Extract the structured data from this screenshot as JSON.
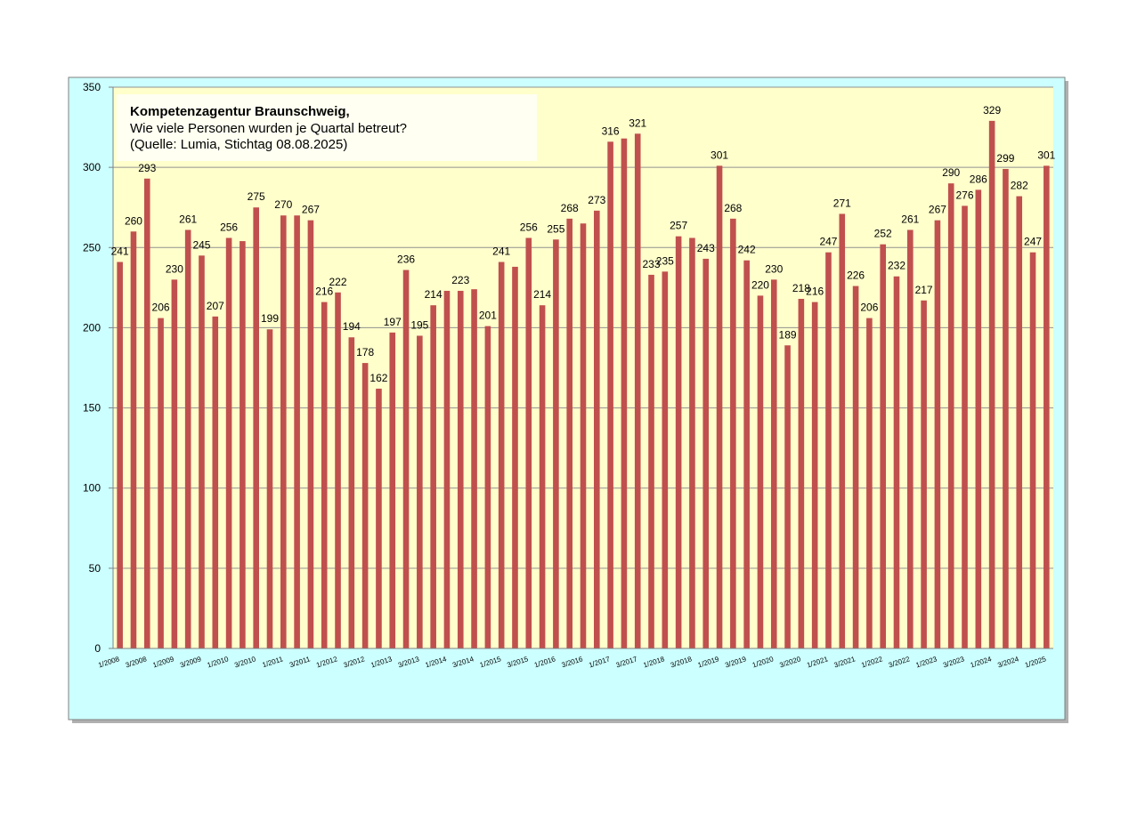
{
  "chart_data": {
    "type": "bar",
    "title": "Kompetenzagentur Braunschweig,",
    "subtitle": [
      "Wie viele Personen wurden je Quartal betreut?",
      "(Quelle: Lumia, Stichtag 08.08.2025)"
    ],
    "categories": [
      "1/2008",
      null,
      "3/2008",
      null,
      "1/2009",
      null,
      "3/2009",
      null,
      "1/2010",
      null,
      "3/2010",
      null,
      "1/2011",
      null,
      "3/2011",
      null,
      "1/2012",
      null,
      "3/2012",
      null,
      "1/2013",
      null,
      "3/2013",
      null,
      "1/2014",
      null,
      "3/2014",
      null,
      "1/2015",
      null,
      "3/2015",
      null,
      "1/2016",
      null,
      "3/2016",
      null,
      "1/2017",
      null,
      "3/2017",
      null,
      "1/2018",
      null,
      "3/2018",
      null,
      "1/2019",
      null,
      "3/2019",
      null,
      "1/2020",
      null,
      "3/2020",
      null,
      "1/2021",
      null,
      "3/2021",
      null,
      "1/2022",
      null,
      "3/2022",
      null,
      "1/2023",
      null,
      "3/2023",
      null,
      "1/2024",
      null,
      "3/2024",
      null,
      "1/2025"
    ],
    "values": [
      241,
      260,
      293,
      206,
      230,
      261,
      245,
      207,
      256,
      254,
      275,
      199,
      270,
      270,
      267,
      216,
      222,
      194,
      178,
      162,
      197,
      236,
      195,
      214,
      223,
      223,
      224,
      201,
      241,
      238,
      256,
      214,
      255,
      268,
      265,
      273,
      316,
      318,
      321,
      233,
      235,
      257,
      256,
      243,
      301,
      268,
      242,
      220,
      230,
      189,
      218,
      216,
      247,
      271,
      226,
      206,
      252,
      232,
      261,
      217,
      267,
      290,
      276,
      286,
      329,
      299,
      282,
      247,
      301
    ],
    "value_labels": [
      "241",
      "260",
      "293",
      "206",
      "230",
      "261",
      "245",
      "207",
      "256",
      null,
      "275",
      "199",
      "270",
      null,
      "267",
      "216",
      "222",
      "194",
      "178",
      "162",
      "197",
      "236",
      "195",
      "214",
      null,
      "223",
      null,
      "201",
      "241",
      null,
      "256",
      "214",
      "255",
      "268",
      null,
      "273",
      "316",
      null,
      "321",
      "233",
      "235",
      "257",
      null,
      "243",
      "301",
      "268",
      "242",
      "220",
      "230",
      "189",
      "218",
      "216",
      "247",
      "271",
      "226",
      "206",
      "252",
      "232",
      "261",
      "217",
      "267",
      "290",
      "276",
      "286",
      "329",
      "299",
      "282",
      "247",
      "301"
    ],
    "color": "#c0504d",
    "ylim": [
      0,
      350
    ],
    "yticks": [
      0,
      50,
      100,
      150,
      200,
      250,
      300,
      350
    ],
    "grid": true
  }
}
